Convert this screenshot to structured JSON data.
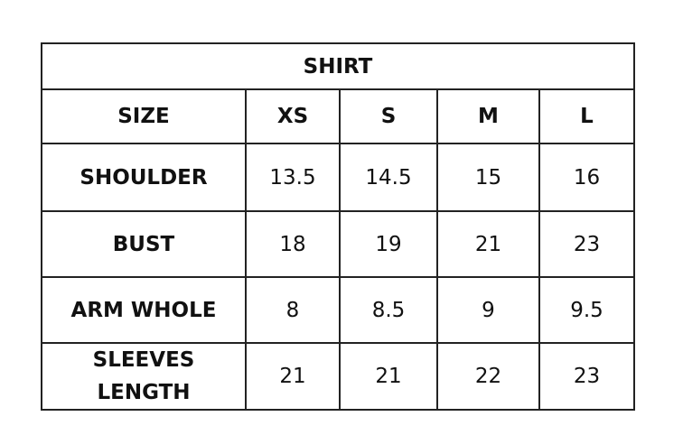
{
  "title": "SHIRT",
  "headers": [
    "SIZE",
    "XS",
    "S",
    "M",
    "L"
  ],
  "rows": [
    {
      "label": "SHOULDER",
      "values": [
        "13.5",
        "14.5",
        "15",
        "16"
      ]
    },
    {
      "label": "BUST",
      "values": [
        "18",
        "19",
        "21",
        "23"
      ]
    },
    {
      "label": "ARM WHOLE",
      "values": [
        "8",
        "8.5",
        "9",
        "9.5"
      ]
    },
    {
      "label": "SLEEVES LENGTH",
      "values": [
        "21",
        "21",
        "22",
        "23"
      ]
    }
  ]
}
